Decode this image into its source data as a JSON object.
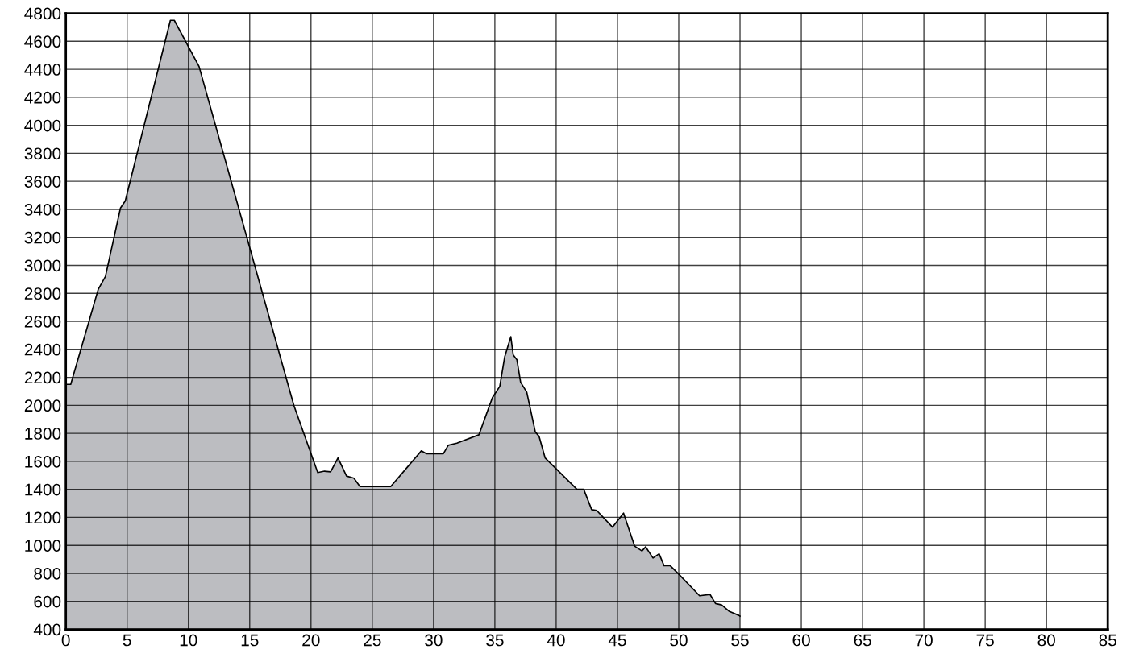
{
  "chart_data": {
    "type": "area",
    "x": [
      0,
      0.4,
      2.65,
      3.23,
      4.46,
      4.85,
      8.53,
      8.85,
      10.87,
      18.6,
      20.55,
      21.1,
      21.6,
      22.2,
      22.9,
      23.5,
      24.0,
      26.5,
      29.0,
      29.4,
      30.8,
      31.2,
      31.9,
      33.7,
      34.8,
      35.4,
      35.8,
      36.3,
      36.5,
      36.8,
      37.1,
      37.6,
      38.3,
      38.6,
      39.1,
      41.7,
      42.25,
      42.9,
      43.3,
      44.6,
      45.5,
      46.4,
      47.0,
      47.3,
      47.9,
      48.4,
      48.8,
      49.3,
      50.0,
      51.7,
      52.55,
      53.0,
      53.5,
      54.1,
      54.9,
      55
    ],
    "series": [
      {
        "color": "#bcbdc1",
        "values": [
          2150,
          2150,
          2830,
          2920,
          3410,
          3460,
          4750,
          4750,
          4420,
          2000,
          1520,
          1530,
          1525,
          1625,
          1495,
          1480,
          1420,
          1420,
          1675,
          1655,
          1655,
          1715,
          1730,
          1790,
          2055,
          2135,
          2345,
          2490,
          2360,
          2325,
          2165,
          2095,
          1810,
          1780,
          1625,
          1400,
          1400,
          1255,
          1250,
          1130,
          1230,
          995,
          960,
          990,
          910,
          940,
          855,
          855,
          795,
          640,
          650,
          585,
          575,
          530,
          500,
          495
        ]
      }
    ],
    "xlim": [
      0,
      85
    ],
    "ylim": [
      400,
      4800
    ],
    "xticks": [
      0,
      5,
      10,
      15,
      20,
      25,
      30,
      35,
      40,
      45,
      50,
      55,
      60,
      65,
      70,
      75,
      80,
      85
    ],
    "yticks": [
      400,
      600,
      800,
      1000,
      1200,
      1400,
      1600,
      1800,
      2000,
      2200,
      2400,
      2600,
      2800,
      3000,
      3200,
      3400,
      3600,
      3800,
      4000,
      4200,
      4400,
      4600,
      4800
    ],
    "grid": true
  }
}
